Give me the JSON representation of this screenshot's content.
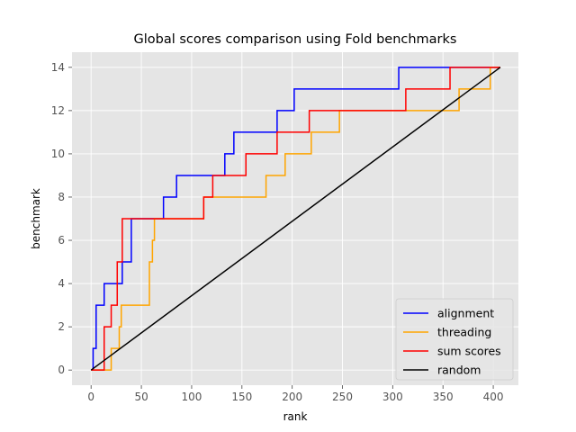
{
  "chart_data": {
    "type": "line",
    "title": "Global scores comparison using Fold benchmarks",
    "xlabel": "rank",
    "ylabel": "benchmark",
    "xlim": [
      -19,
      425
    ],
    "ylim": [
      -0.7,
      14.7
    ],
    "xticks": [
      0,
      50,
      100,
      150,
      200,
      250,
      300,
      350,
      400
    ],
    "yticks": [
      0,
      2,
      4,
      6,
      8,
      10,
      12,
      14
    ],
    "grid": true,
    "legend_position": "lower-right",
    "series": [
      {
        "name": "alignment",
        "color": "#0000ff",
        "step": true,
        "points": [
          [
            0,
            0
          ],
          [
            2,
            1
          ],
          [
            5,
            3
          ],
          [
            13,
            4
          ],
          [
            31,
            5
          ],
          [
            40,
            7
          ],
          [
            72,
            8
          ],
          [
            85,
            9
          ],
          [
            133,
            10
          ],
          [
            142,
            11
          ],
          [
            185,
            12
          ],
          [
            202,
            13
          ],
          [
            306,
            14
          ],
          [
            407,
            14
          ]
        ]
      },
      {
        "name": "threading",
        "color": "#ffa500",
        "step": true,
        "points": [
          [
            0,
            0
          ],
          [
            20,
            1
          ],
          [
            28,
            2
          ],
          [
            30,
            3
          ],
          [
            58,
            5
          ],
          [
            61,
            6
          ],
          [
            63,
            7
          ],
          [
            112,
            8
          ],
          [
            174,
            9
          ],
          [
            193,
            10
          ],
          [
            219,
            11
          ],
          [
            247,
            12
          ],
          [
            366,
            13
          ],
          [
            397,
            14
          ],
          [
            407,
            14
          ]
        ]
      },
      {
        "name": "sum scores",
        "color": "#ff0000",
        "step": true,
        "points": [
          [
            0,
            0
          ],
          [
            13,
            2
          ],
          [
            20,
            3
          ],
          [
            26,
            5
          ],
          [
            31,
            7
          ],
          [
            112,
            8
          ],
          [
            121,
            9
          ],
          [
            154,
            10
          ],
          [
            185,
            11
          ],
          [
            217,
            12
          ],
          [
            313,
            13
          ],
          [
            357,
            14
          ],
          [
            407,
            14
          ]
        ]
      },
      {
        "name": "random",
        "color": "#000000",
        "step": false,
        "points": [
          [
            0,
            0
          ],
          [
            407,
            14
          ]
        ]
      }
    ]
  }
}
